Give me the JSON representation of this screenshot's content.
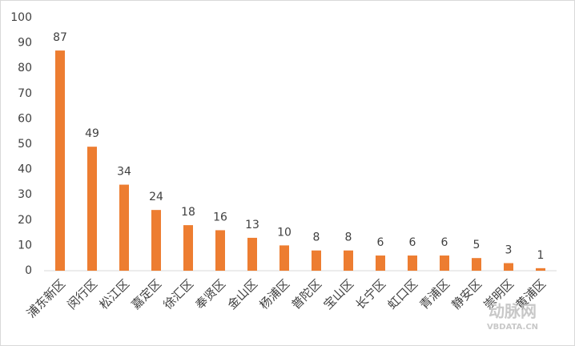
{
  "chart_data": {
    "type": "bar",
    "categories": [
      "浦东新区",
      "闵行区",
      "松江区",
      "嘉定区",
      "徐汇区",
      "奉贤区",
      "金山区",
      "杨浦区",
      "普陀区",
      "宝山区",
      "长宁区",
      "虹口区",
      "青浦区",
      "静安区",
      "崇明区",
      "黄浦区"
    ],
    "values": [
      87,
      49,
      34,
      24,
      18,
      16,
      13,
      10,
      8,
      8,
      6,
      6,
      6,
      5,
      3,
      1
    ],
    "color": "#ed7d31",
    "ylim": [
      0,
      100
    ],
    "yticks": [
      0,
      10,
      20,
      30,
      40,
      50,
      60,
      70,
      80,
      90,
      100
    ],
    "grid": false,
    "watermark": [
      "动脉网",
      "VBDATA.CN"
    ]
  }
}
